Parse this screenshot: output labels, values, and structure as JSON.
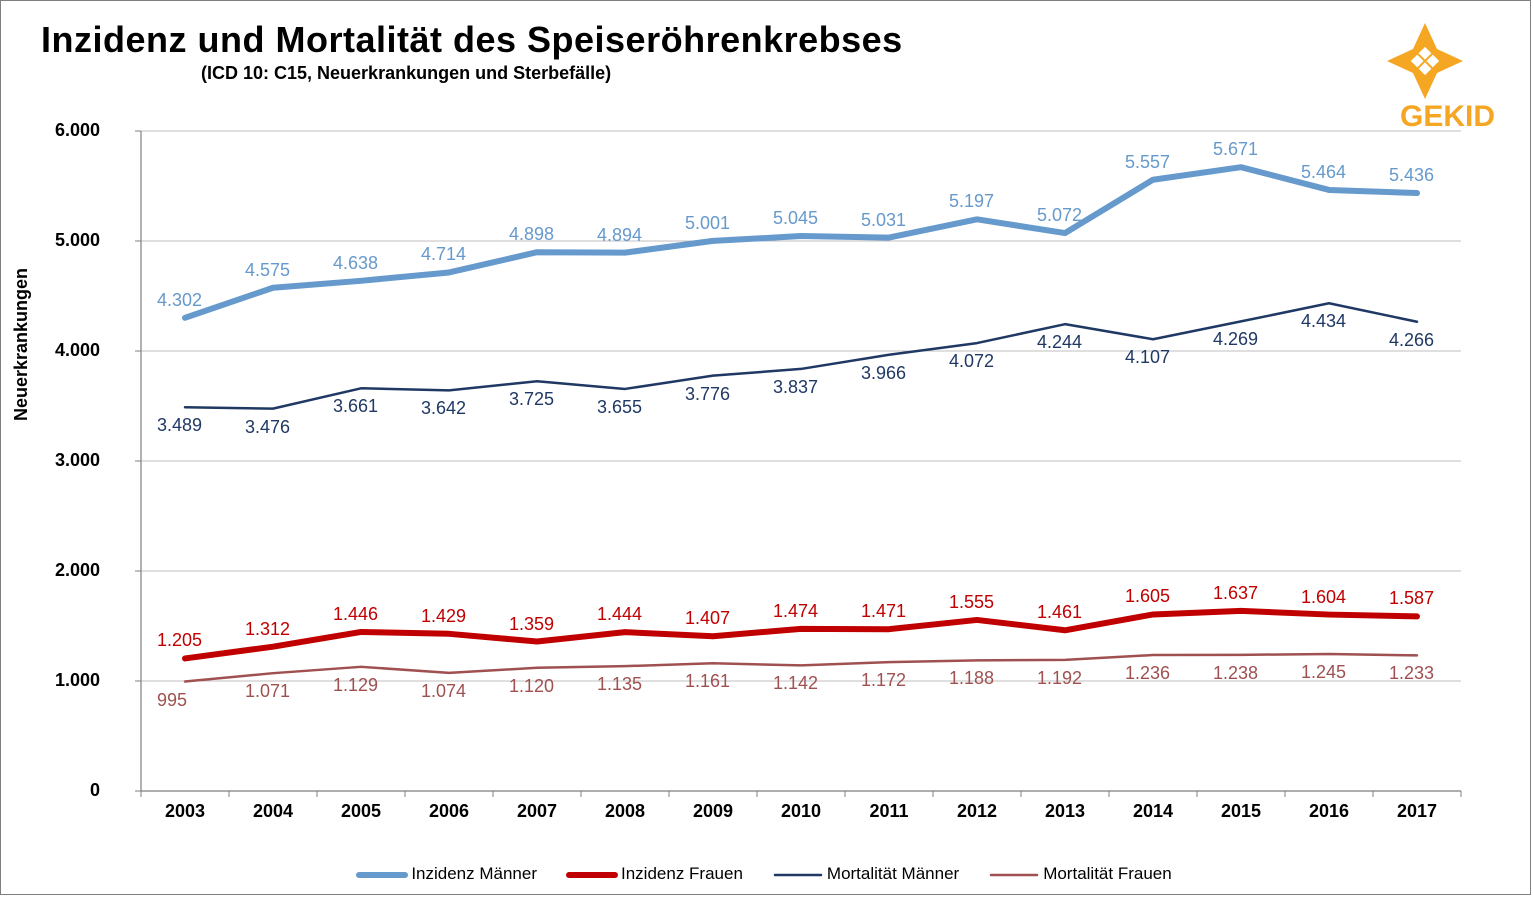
{
  "title": "Inzidenz und Mortalität des Speiseröhrenkrebses",
  "subtitle": "(ICD 10: C15, Neuerkrankungen und Sterbefälle)",
  "y_axis_title": "Neuerkrankungen",
  "logo": {
    "text": "GEKID",
    "fill_color": "#f5a623",
    "text_color": "#f5a623"
  },
  "chart": {
    "type": "line",
    "background_color": "#ffffff",
    "grid_color": "#bfbfbf",
    "axis_color": "#7f7f7f",
    "font_family": "Arial",
    "title_fontsize": 36,
    "subtitle_fontsize": 18,
    "axis_label_fontsize": 18,
    "data_label_fontsize": 18,
    "legend_fontsize": 17,
    "x_categories": [
      "2003",
      "2004",
      "2005",
      "2006",
      "2007",
      "2008",
      "2009",
      "2010",
      "2011",
      "2012",
      "2013",
      "2014",
      "2015",
      "2016",
      "2017"
    ],
    "ylim": [
      0,
      6000
    ],
    "ytick_step": 1000,
    "ytick_labels": [
      "0",
      "1.000",
      "2.000",
      "3.000",
      "4.000",
      "5.000",
      "6.000"
    ],
    "series": [
      {
        "name": "Inzidenz Männer",
        "color": "#6699cc",
        "label_color": "#6699cc",
        "line_width": 6,
        "values": [
          4302,
          4575,
          4638,
          4714,
          4898,
          4894,
          5001,
          5045,
          5031,
          5197,
          5072,
          5557,
          5671,
          5464,
          5436
        ],
        "labels": [
          "4.302",
          "4.575",
          "4.638",
          "4.714",
          "4.898",
          "4.894",
          "5.001",
          "5.045",
          "5.031",
          "5.197",
          "5.072",
          "5.557",
          "5.671",
          "5.464",
          "5.436"
        ],
        "label_position": "above"
      },
      {
        "name": "Inzidenz Frauen",
        "color": "#c00000",
        "label_color": "#c00000",
        "line_width": 6,
        "values": [
          1205,
          1312,
          1446,
          1429,
          1359,
          1444,
          1407,
          1474,
          1471,
          1555,
          1461,
          1605,
          1637,
          1604,
          1587
        ],
        "labels": [
          "1.205",
          "1.312",
          "1.446",
          "1.429",
          "1.359",
          "1.444",
          "1.407",
          "1.474",
          "1.471",
          "1.555",
          "1.461",
          "1.605",
          "1.637",
          "1.604",
          "1.587"
        ],
        "label_position": "above"
      },
      {
        "name": "Mortalität Männer",
        "color": "#1f3864",
        "label_color": "#1f3864",
        "line_width": 2.5,
        "values": [
          3489,
          3476,
          3661,
          3642,
          3725,
          3655,
          3776,
          3837,
          3966,
          4072,
          4244,
          4107,
          4269,
          4434,
          4266
        ],
        "labels": [
          "3.489",
          "3.476",
          "3.661",
          "3.642",
          "3.725",
          "3.655",
          "3.776",
          "3.837",
          "3.966",
          "4.072",
          "4.244",
          "4.107",
          "4.269",
          "4.434",
          "4.266"
        ],
        "label_position": "below"
      },
      {
        "name": "Mortalität Frauen",
        "color": "#a05050",
        "label_color": "#a05050",
        "line_width": 2.5,
        "values": [
          995,
          1071,
          1129,
          1074,
          1120,
          1135,
          1161,
          1142,
          1172,
          1188,
          1192,
          1236,
          1238,
          1245,
          1233
        ],
        "labels": [
          "995",
          "1.071",
          "1.129",
          "1.074",
          "1.120",
          "1.135",
          "1.161",
          "1.142",
          "1.172",
          "1.188",
          "1.192",
          "1.236",
          "1.238",
          "1.245",
          "1.233"
        ],
        "label_position": "below"
      }
    ],
    "legend_items": [
      "Inzidenz Männer",
      "Inzidenz Frauen",
      "Mortalität Männer",
      "Mortalität Frauen"
    ]
  }
}
